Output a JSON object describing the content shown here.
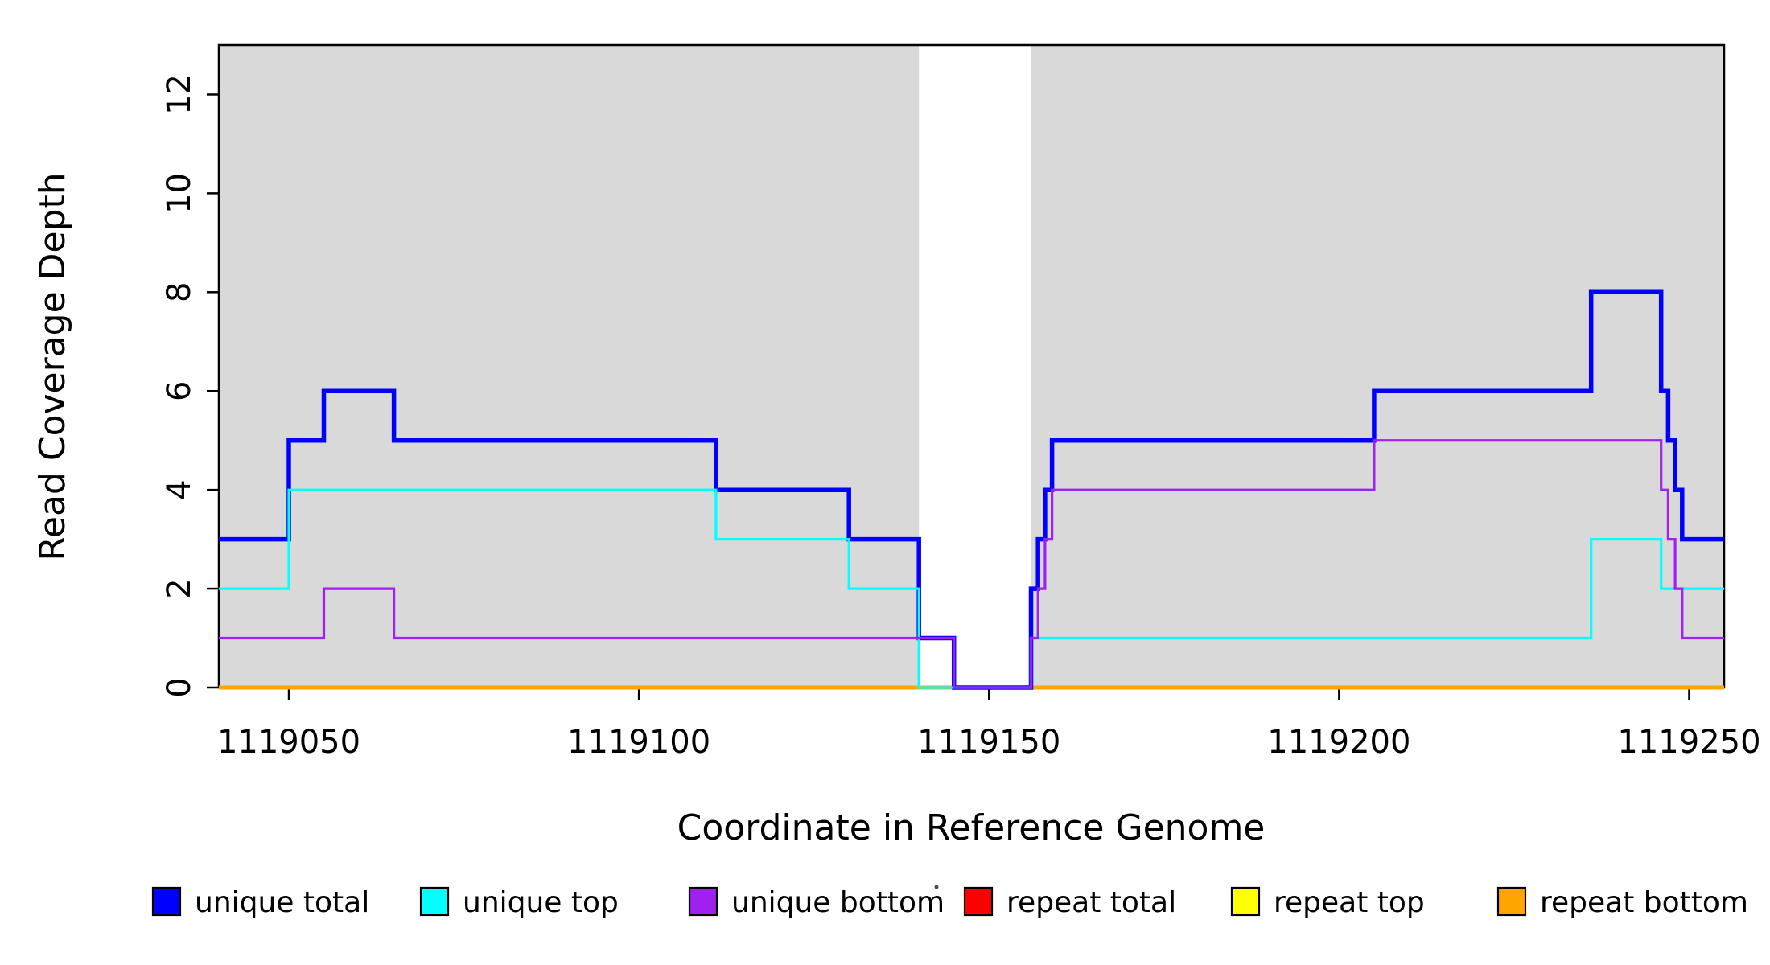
{
  "chart_data": {
    "type": "line",
    "subtype": "step-coverage",
    "title": "",
    "xlabel": "Coordinate in Reference Genome",
    "ylabel": "Read Coverage Depth",
    "xlim": [
      1119040,
      1119255
    ],
    "ylim": [
      0,
      13
    ],
    "x_ticks": [
      1119050,
      1119100,
      1119150,
      1119200,
      1119250
    ],
    "y_ticks": [
      0,
      2,
      4,
      6,
      8,
      10,
      12
    ],
    "grid": false,
    "background_color": "#ffffff",
    "shaded_regions": [
      {
        "name": "unique-alignability-block-left",
        "x0": 1119040,
        "x1": 1119140,
        "color": "#d9d9d9"
      },
      {
        "name": "unique-alignability-block-right",
        "x0": 1119156,
        "x1": 1119255,
        "color": "#d9d9d9"
      }
    ],
    "series": [
      {
        "name": "repeat total",
        "color": "#ff0000",
        "width": 5,
        "points": [
          [
            1119040,
            0
          ],
          [
            1119255,
            0
          ]
        ]
      },
      {
        "name": "repeat top",
        "color": "#ffff00",
        "width": 5,
        "points": [
          [
            1119040,
            0
          ],
          [
            1119255,
            0
          ]
        ]
      },
      {
        "name": "repeat bottom",
        "color": "#ffa500",
        "width": 5,
        "points": [
          [
            1119040,
            0
          ],
          [
            1119255,
            0
          ]
        ]
      },
      {
        "name": "unique total",
        "color": "#0000ff",
        "width": 5.5,
        "points": [
          [
            1119040,
            3
          ],
          [
            1119050,
            5
          ],
          [
            1119055,
            6
          ],
          [
            1119065,
            5
          ],
          [
            1119111,
            4
          ],
          [
            1119130,
            3
          ],
          [
            1119140,
            1
          ],
          [
            1119145,
            0
          ],
          [
            1119156,
            2
          ],
          [
            1119157,
            3
          ],
          [
            1119158,
            4
          ],
          [
            1119159,
            5
          ],
          [
            1119205,
            6
          ],
          [
            1119236,
            8
          ],
          [
            1119246,
            6
          ],
          [
            1119247,
            5
          ],
          [
            1119248,
            4
          ],
          [
            1119249,
            3
          ],
          [
            1119255,
            3
          ]
        ]
      },
      {
        "name": "unique top",
        "color": "#00ffff",
        "width": 3.2,
        "points": [
          [
            1119040,
            2
          ],
          [
            1119050,
            4
          ],
          [
            1119111,
            3
          ],
          [
            1119130,
            2
          ],
          [
            1119140,
            0
          ],
          [
            1119156,
            1
          ],
          [
            1119236,
            3
          ],
          [
            1119246,
            2
          ],
          [
            1119255,
            2
          ]
        ]
      },
      {
        "name": "unique bottom",
        "color": "#a020f0",
        "width": 3.2,
        "points": [
          [
            1119040,
            1
          ],
          [
            1119055,
            2
          ],
          [
            1119065,
            1
          ],
          [
            1119145,
            0
          ],
          [
            1119156,
            1
          ],
          [
            1119157,
            2
          ],
          [
            1119158,
            3
          ],
          [
            1119159,
            4
          ],
          [
            1119205,
            5
          ],
          [
            1119246,
            4
          ],
          [
            1119247,
            3
          ],
          [
            1119248,
            2
          ],
          [
            1119249,
            1
          ],
          [
            1119255,
            1
          ]
        ]
      }
    ],
    "legend": {
      "position": "bottom",
      "entries": [
        {
          "label": "unique total",
          "color": "#0000ff"
        },
        {
          "label": "unique top",
          "color": "#00ffff"
        },
        {
          "label": "unique bottom",
          "color": "#a020f0"
        },
        {
          "label": "repeat total",
          "color": "#ff0000"
        },
        {
          "label": "repeat top",
          "color": "#ffff00"
        },
        {
          "label": "repeat bottom",
          "color": "#ffa500"
        }
      ]
    },
    "axis_color": "#000000",
    "tick_label_values": {
      "x": [
        "1119050",
        "1119100",
        "1119150",
        "1119200",
        "1119250"
      ],
      "y": [
        "0",
        "2",
        "4",
        "6",
        "8",
        "10",
        "12"
      ]
    }
  }
}
